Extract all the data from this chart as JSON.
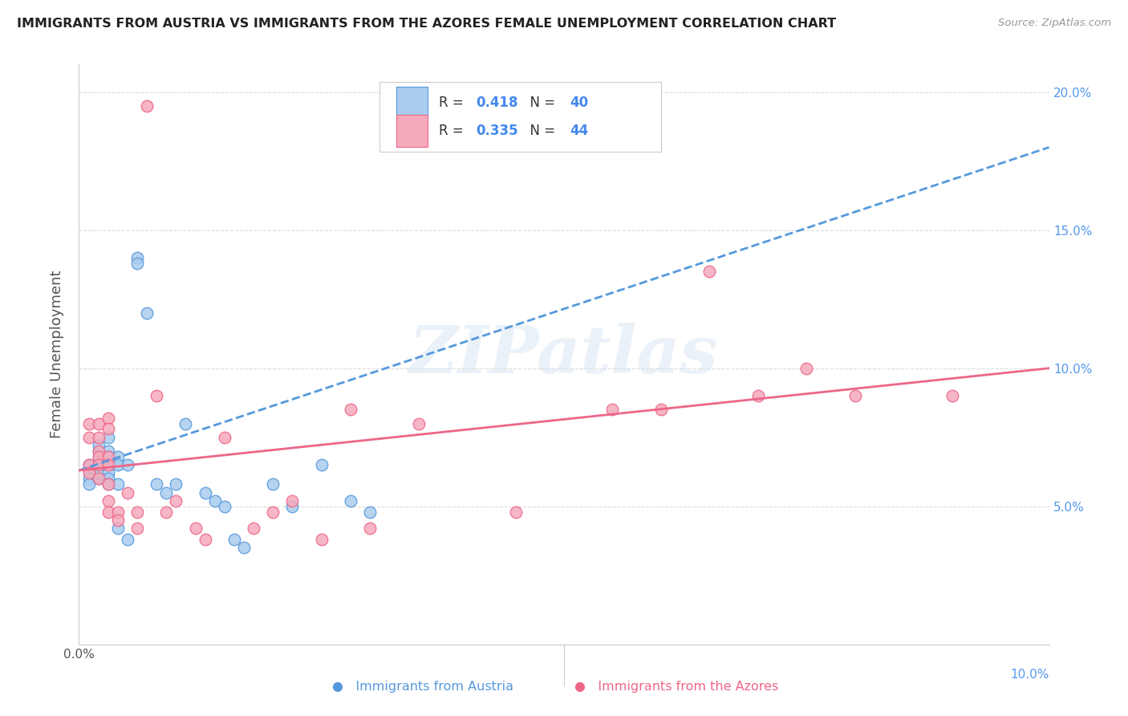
{
  "title": "IMMIGRANTS FROM AUSTRIA VS IMMIGRANTS FROM THE AZORES FEMALE UNEMPLOYMENT CORRELATION CHART",
  "source": "Source: ZipAtlas.com",
  "ylabel": "Female Unemployment",
  "xlim": [
    0.0,
    0.1
  ],
  "ylim": [
    0.0,
    0.21
  ],
  "yticks": [
    0.05,
    0.1,
    0.15,
    0.2
  ],
  "yright_labels": [
    "5.0%",
    "10.0%",
    "15.0%",
    "20.0%"
  ],
  "legend_austria_r": "0.418",
  "legend_austria_n": "40",
  "legend_azores_r": "0.335",
  "legend_azores_n": "44",
  "austria_fill_color": "#aaccee",
  "azores_fill_color": "#f5aabb",
  "austria_edge_color": "#5599dd",
  "azores_edge_color": "#ee6688",
  "austria_line_color": "#5599dd",
  "azores_line_color": "#ee6688",
  "austria_scatter": [
    [
      0.001,
      0.063
    ],
    [
      0.001,
      0.06
    ],
    [
      0.001,
      0.058
    ],
    [
      0.001,
      0.065
    ],
    [
      0.002,
      0.07
    ],
    [
      0.002,
      0.068
    ],
    [
      0.002,
      0.072
    ],
    [
      0.002,
      0.065
    ],
    [
      0.002,
      0.06
    ],
    [
      0.002,
      0.062
    ],
    [
      0.003,
      0.07
    ],
    [
      0.003,
      0.068
    ],
    [
      0.003,
      0.065
    ],
    [
      0.003,
      0.062
    ],
    [
      0.003,
      0.06
    ],
    [
      0.003,
      0.058
    ],
    [
      0.003,
      0.075
    ],
    [
      0.004,
      0.068
    ],
    [
      0.004,
      0.065
    ],
    [
      0.004,
      0.058
    ],
    [
      0.004,
      0.042
    ],
    [
      0.005,
      0.065
    ],
    [
      0.005,
      0.038
    ],
    [
      0.006,
      0.14
    ],
    [
      0.006,
      0.138
    ],
    [
      0.007,
      0.12
    ],
    [
      0.008,
      0.058
    ],
    [
      0.009,
      0.055
    ],
    [
      0.01,
      0.058
    ],
    [
      0.011,
      0.08
    ],
    [
      0.013,
      0.055
    ],
    [
      0.014,
      0.052
    ],
    [
      0.015,
      0.05
    ],
    [
      0.016,
      0.038
    ],
    [
      0.017,
      0.035
    ],
    [
      0.02,
      0.058
    ],
    [
      0.022,
      0.05
    ],
    [
      0.025,
      0.065
    ],
    [
      0.028,
      0.052
    ],
    [
      0.03,
      0.048
    ]
  ],
  "azores_scatter": [
    [
      0.001,
      0.065
    ],
    [
      0.001,
      0.062
    ],
    [
      0.001,
      0.075
    ],
    [
      0.001,
      0.08
    ],
    [
      0.002,
      0.08
    ],
    [
      0.002,
      0.075
    ],
    [
      0.002,
      0.07
    ],
    [
      0.002,
      0.068
    ],
    [
      0.002,
      0.065
    ],
    [
      0.002,
      0.06
    ],
    [
      0.003,
      0.082
    ],
    [
      0.003,
      0.078
    ],
    [
      0.003,
      0.068
    ],
    [
      0.003,
      0.065
    ],
    [
      0.003,
      0.058
    ],
    [
      0.003,
      0.052
    ],
    [
      0.003,
      0.048
    ],
    [
      0.004,
      0.048
    ],
    [
      0.004,
      0.045
    ],
    [
      0.005,
      0.055
    ],
    [
      0.006,
      0.048
    ],
    [
      0.006,
      0.042
    ],
    [
      0.007,
      0.195
    ],
    [
      0.008,
      0.09
    ],
    [
      0.009,
      0.048
    ],
    [
      0.01,
      0.052
    ],
    [
      0.012,
      0.042
    ],
    [
      0.013,
      0.038
    ],
    [
      0.015,
      0.075
    ],
    [
      0.018,
      0.042
    ],
    [
      0.02,
      0.048
    ],
    [
      0.022,
      0.052
    ],
    [
      0.025,
      0.038
    ],
    [
      0.028,
      0.085
    ],
    [
      0.03,
      0.042
    ],
    [
      0.035,
      0.08
    ],
    [
      0.045,
      0.048
    ],
    [
      0.055,
      0.085
    ],
    [
      0.06,
      0.085
    ],
    [
      0.065,
      0.135
    ],
    [
      0.07,
      0.09
    ],
    [
      0.075,
      0.1
    ],
    [
      0.08,
      0.09
    ],
    [
      0.09,
      0.09
    ]
  ],
  "watermark_text": "ZIPatlas",
  "background_color": "#ffffff",
  "grid_color": "#dddddd"
}
